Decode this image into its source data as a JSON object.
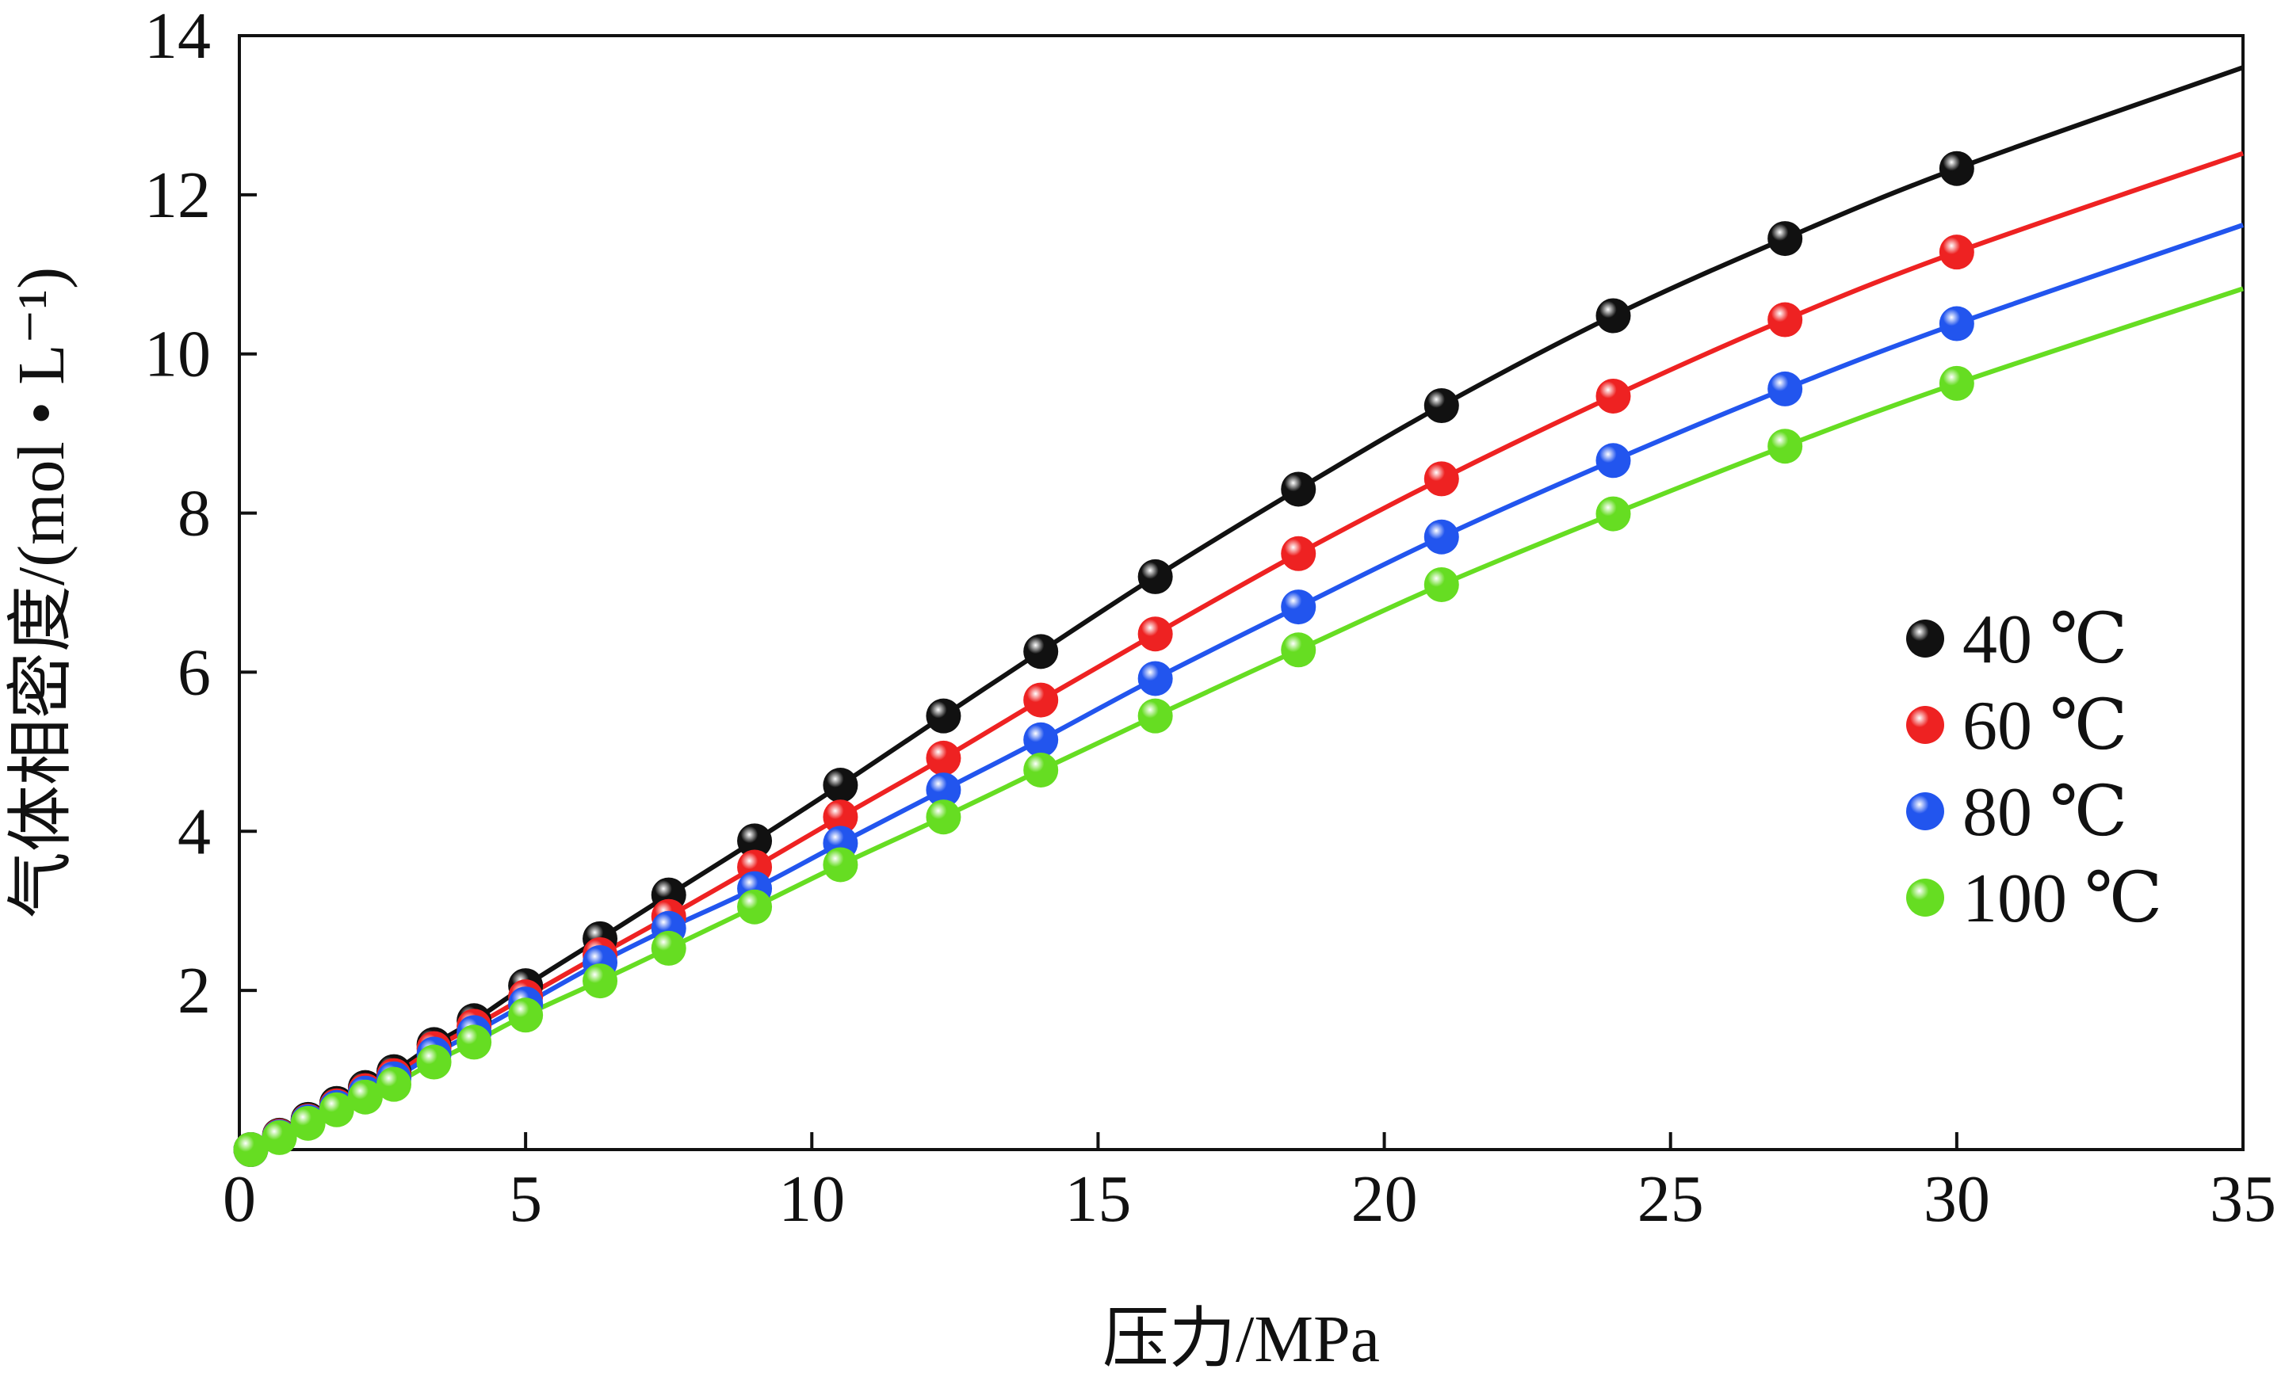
{
  "chart_data": {
    "type": "scatter",
    "xlabel": "压力/MPa",
    "ylabel": "气体相密度/(mol • L⁻¹)",
    "xlim": [
      0,
      35
    ],
    "ylim": [
      0,
      14
    ],
    "xticks": [
      0,
      5,
      10,
      15,
      20,
      25,
      30,
      35
    ],
    "yticks": [
      2,
      4,
      6,
      8,
      10,
      12,
      14
    ],
    "grid": false,
    "legend_position": "right",
    "x": [
      0.2,
      0.7,
      1.2,
      1.7,
      2.2,
      2.7,
      3.4,
      4.1,
      5.0,
      6.3,
      7.5,
      9.0,
      10.5,
      12.3,
      14.0,
      16.0,
      18.5,
      21.0,
      24.0,
      27.0,
      30.0
    ],
    "series": [
      {
        "name": "40 ℃",
        "color": "#111111",
        "fit_end": 13.6,
        "values": [
          0.0,
          0.18,
          0.38,
          0.58,
          0.78,
          0.98,
          1.32,
          1.62,
          2.06,
          2.65,
          3.2,
          3.88,
          4.58,
          5.45,
          6.26,
          7.2,
          8.3,
          9.35,
          10.48,
          11.45,
          12.33
        ]
      },
      {
        "name": "60 ℃",
        "color": "#ee2222",
        "fit_end": 12.52,
        "values": [
          0.0,
          0.17,
          0.36,
          0.55,
          0.74,
          0.93,
          1.27,
          1.55,
          1.92,
          2.45,
          2.93,
          3.55,
          4.18,
          4.92,
          5.65,
          6.48,
          7.49,
          8.43,
          9.47,
          10.43,
          11.28
        ]
      },
      {
        "name": "80 ℃",
        "color": "#2255ee",
        "fit_end": 11.62,
        "values": [
          0.0,
          0.16,
          0.35,
          0.53,
          0.71,
          0.89,
          1.2,
          1.47,
          1.83,
          2.35,
          2.78,
          3.28,
          3.85,
          4.52,
          5.15,
          5.92,
          6.82,
          7.7,
          8.66,
          9.56,
          10.38
        ]
      },
      {
        "name": "100 ℃",
        "color": "#66dd22",
        "fit_end": 10.82,
        "values": [
          0.0,
          0.15,
          0.33,
          0.5,
          0.66,
          0.82,
          1.1,
          1.35,
          1.69,
          2.12,
          2.53,
          3.05,
          3.58,
          4.18,
          4.77,
          5.45,
          6.28,
          7.1,
          7.99,
          8.84,
          9.63
        ]
      }
    ]
  }
}
